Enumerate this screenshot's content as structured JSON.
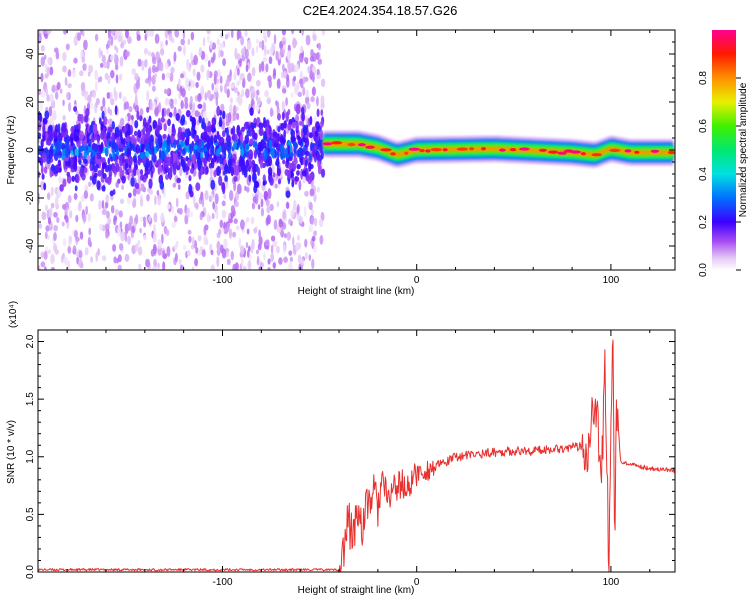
{
  "figure_title": "C2E4.2024.354.18.57.G26",
  "chart_data": [
    {
      "type": "heatmap",
      "xlabel": "Height of straight line (km)",
      "ylabel": "Frequency (Hz)",
      "xlim": [
        -195,
        133
      ],
      "ylim": [
        -50,
        50
      ],
      "xticks": [
        -100,
        0,
        100
      ],
      "yticks": [
        -40,
        -20,
        0,
        20,
        40
      ],
      "colorbar": {
        "label": "Normalized spectral amplitude",
        "range": [
          0,
          1
        ],
        "ticks": [
          0.0,
          0.2,
          0.4,
          0.6,
          0.8
        ],
        "colormap": "rainbow (white-violet-blue-cyan-green-yellow-red-magenta)"
      },
      "regions": [
        {
          "x_range": [
            -195,
            -48
          ],
          "description_value": "broadband scattered low amplitude (0.0-0.3), concentrated near 0 Hz"
        },
        {
          "x_range": [
            -48,
            133
          ],
          "description_value": "narrow band near 0 Hz, amplitude 0.5-1.0"
        }
      ],
      "band_center": [
        {
          "x": -48,
          "y": 2.5
        },
        {
          "x": -30,
          "y": 2.5
        },
        {
          "x": -20,
          "y": 1
        },
        {
          "x": -10,
          "y": -2
        },
        {
          "x": 0,
          "y": 0
        },
        {
          "x": 40,
          "y": 0.5
        },
        {
          "x": 80,
          "y": -1
        },
        {
          "x": 92,
          "y": -2
        },
        {
          "x": 100,
          "y": 0.5
        },
        {
          "x": 110,
          "y": -1
        },
        {
          "x": 133,
          "y": -1
        }
      ]
    },
    {
      "type": "line",
      "xlabel": "Height of straight line (km)",
      "ylabel": "SNR (10 * v/v)",
      "yscale_note": "(x10⁴)",
      "xlim": [
        -195,
        133
      ],
      "ylim": [
        0,
        2.1
      ],
      "xticks": [
        -100,
        0,
        100
      ],
      "yticks": [
        0.0,
        0.5,
        1.0,
        1.5,
        2.0
      ],
      "series_color": "#e8302e",
      "x": [
        -195,
        -100,
        -60,
        -40,
        -38,
        -35,
        -33,
        -30,
        -28,
        -25,
        -22,
        -20,
        -18,
        -15,
        -12,
        -10,
        -8,
        -5,
        -2,
        0,
        5,
        10,
        15,
        20,
        30,
        40,
        50,
        60,
        70,
        80,
        88,
        92,
        95,
        97,
        99,
        100,
        101,
        102,
        103,
        105,
        110,
        120,
        133
      ],
      "y": [
        0.02,
        0.02,
        0.02,
        0.02,
        0.15,
        0.45,
        0.3,
        0.55,
        0.4,
        0.6,
        0.7,
        0.55,
        0.8,
        0.6,
        0.75,
        0.72,
        0.78,
        0.7,
        0.82,
        0.85,
        0.88,
        0.92,
        0.95,
        1.0,
        1.02,
        1.04,
        1.05,
        1.05,
        1.07,
        1.08,
        1.1,
        1.6,
        0.7,
        1.75,
        0.02,
        1.4,
        2.1,
        0.2,
        1.5,
        0.95,
        0.93,
        0.9,
        0.88
      ]
    }
  ]
}
